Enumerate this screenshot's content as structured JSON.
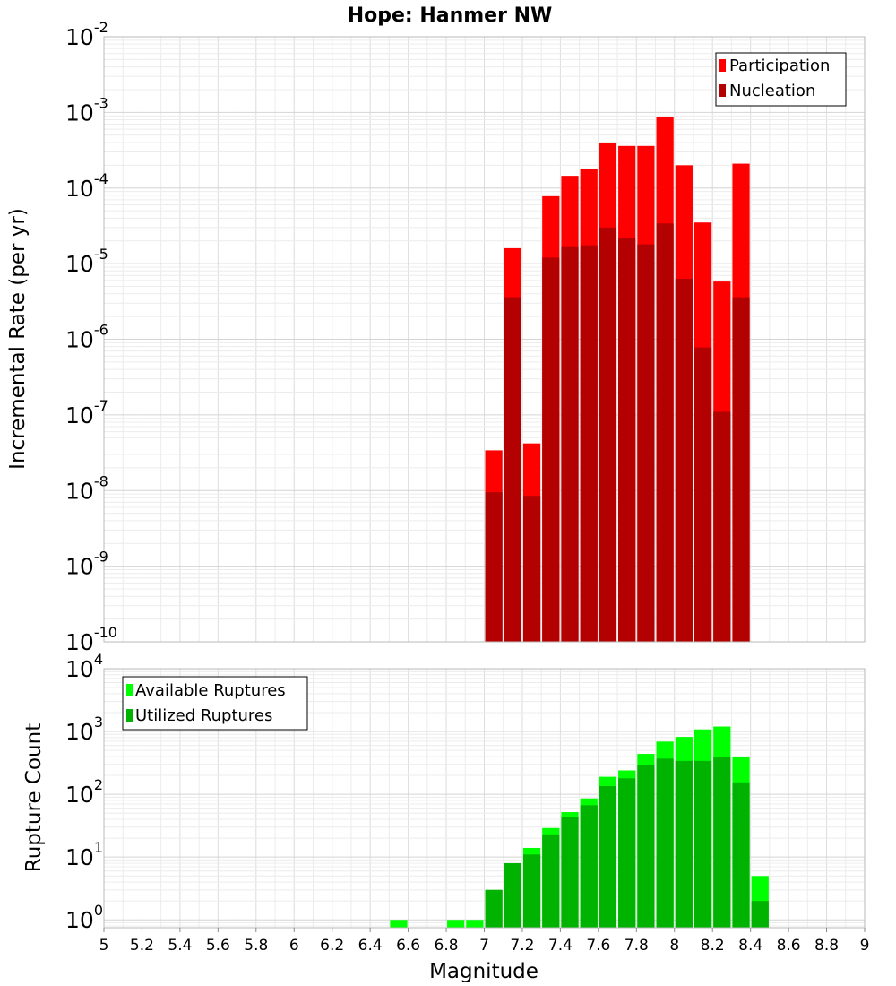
{
  "colors": {
    "participation": "#ff0000",
    "nucleation": "#b30000",
    "available": "#00ff00",
    "utilized": "#00b300"
  },
  "chart_data": [
    {
      "type": "bar",
      "title": "Hope: Hanmer NW",
      "ylabel": "Incremental Rate (per yr)",
      "xlabel": "",
      "yscale": "log",
      "ylim": [
        1e-10,
        0.01
      ],
      "xlim": [
        5,
        9
      ],
      "grid": true,
      "legend": "top-right",
      "y_tick_exponents": [
        -10,
        -9,
        -8,
        -7,
        -6,
        -5,
        -4,
        -3,
        -2
      ],
      "bin_width": 0.1,
      "x": [
        7.05,
        7.15,
        7.25,
        7.35,
        7.45,
        7.55,
        7.65,
        7.75,
        7.85,
        7.95,
        8.05,
        8.15,
        8.25,
        8.35
      ],
      "series": [
        {
          "name": "Participation",
          "values": [
            3.4e-08,
            1.6e-05,
            4.2e-08,
            7.8e-05,
            0.000145,
            0.00018,
            0.0004,
            0.00036,
            0.00036,
            0.00086,
            0.0002,
            3.5e-05,
            5.8e-06,
            0.00021
          ]
        },
        {
          "name": "Nucleation",
          "values": [
            9.5e-09,
            3.6e-06,
            8.5e-09,
            1.2e-05,
            1.7e-05,
            1.75e-05,
            3e-05,
            2.2e-05,
            1.8e-05,
            3.4e-05,
            6.3e-06,
            7.8e-07,
            1.1e-07,
            3.6e-06
          ]
        }
      ]
    },
    {
      "type": "bar",
      "title": "",
      "ylabel": "Rupture Count",
      "xlabel": "Magnitude",
      "yscale": "log",
      "ylim": [
        0.75,
        10000
      ],
      "xlim": [
        5,
        9
      ],
      "grid": true,
      "legend": "top-left",
      "y_tick_exponents": [
        0,
        1,
        2,
        3,
        4
      ],
      "x_ticks": [
        "5",
        "5.2",
        "5.4",
        "5.6",
        "5.8",
        "6",
        "6.2",
        "6.4",
        "6.6",
        "6.8",
        "7",
        "7.2",
        "7.4",
        "7.6",
        "7.8",
        "8",
        "8.2",
        "8.4",
        "8.6",
        "8.8",
        "9"
      ],
      "bin_width": 0.1,
      "x": [
        6.55,
        6.85,
        6.95,
        7.05,
        7.15,
        7.25,
        7.35,
        7.45,
        7.55,
        7.65,
        7.75,
        7.85,
        7.95,
        8.05,
        8.15,
        8.25,
        8.35,
        8.45
      ],
      "series": [
        {
          "name": "Available Ruptures",
          "values": [
            1,
            1,
            1,
            3,
            8,
            14,
            29,
            52,
            86,
            190,
            240,
            440,
            690,
            820,
            1080,
            1200,
            400,
            5
          ]
        },
        {
          "name": "Utilized Ruptures",
          "values": [
            0,
            0,
            0,
            3,
            8,
            11,
            23,
            44,
            67,
            135,
            180,
            290,
            370,
            340,
            340,
            390,
            155,
            2
          ]
        }
      ]
    }
  ]
}
